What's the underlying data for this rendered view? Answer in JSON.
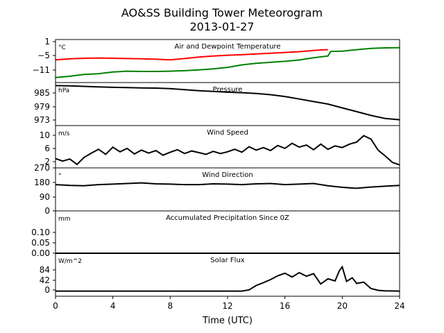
{
  "title_line1": "AO&SS Building Tower Meteorogram",
  "title_line2": "2013-01-27",
  "xlabel": "Time (UTC)",
  "chart_data": {
    "type": "line",
    "x_ticks": [
      "0",
      "4",
      "8",
      "12",
      "16",
      "20",
      "24"
    ],
    "x_range": [
      0,
      24
    ],
    "panels": [
      {
        "title": "Air and Dewpoint Temperature",
        "unit": "°C",
        "y_ticks": [
          "1",
          "−5",
          "−11"
        ],
        "ylim": [
          -15,
          2
        ],
        "series": [
          {
            "color": "#ff0000",
            "x": [
              0,
              1,
              2,
              3,
              4,
              5,
              6,
              7,
              8,
              9,
              10,
              11,
              12,
              13,
              14,
              15,
              16,
              17,
              18,
              18.5,
              19
            ],
            "y": [
              -6.0,
              -5.6,
              -5.4,
              -5.3,
              -5.4,
              -5.5,
              -5.6,
              -5.8,
              -6.0,
              -5.5,
              -4.9,
              -4.5,
              -4.2,
              -4.0,
              -3.7,
              -3.4,
              -3.1,
              -2.8,
              -2.3,
              -2.1,
              -2.0
            ]
          },
          {
            "color": "#008000",
            "x": [
              0,
              1,
              2,
              3,
              4,
              5,
              6,
              7,
              8,
              9,
              10,
              11,
              12,
              13,
              14,
              15,
              16,
              17,
              18,
              19,
              19.2,
              20,
              21,
              22,
              23,
              24
            ],
            "y": [
              -13.0,
              -12.5,
              -11.8,
              -11.5,
              -10.8,
              -10.5,
              -10.6,
              -10.6,
              -10.5,
              -10.3,
              -10.0,
              -9.6,
              -9.0,
              -8.0,
              -7.4,
              -7.0,
              -6.6,
              -6.1,
              -5.2,
              -4.5,
              -2.7,
              -2.6,
              -2.0,
              -1.5,
              -1.3,
              -1.2
            ]
          }
        ]
      },
      {
        "title": "Pressure",
        "unit": "hPa",
        "y_ticks": [
          "985",
          "979",
          "973"
        ],
        "ylim": [
          971,
          988
        ],
        "series": [
          {
            "color": "#000000",
            "x": [
              0,
              1,
              2,
              3,
              4,
              5,
              6,
              7,
              8,
              9,
              10,
              11,
              12,
              13,
              14,
              15,
              16,
              17,
              18,
              19,
              20,
              21,
              22,
              23,
              24
            ],
            "y": [
              986.8,
              986.7,
              986.5,
              986.3,
              986.1,
              986.0,
              985.9,
              985.8,
              985.6,
              985.2,
              984.8,
              984.5,
              984.2,
              984.0,
              983.7,
              983.2,
              982.5,
              981.5,
              980.5,
              979.5,
              978.0,
              976.5,
              975.0,
              973.8,
              973.3
            ]
          }
        ]
      },
      {
        "title": "Wind Speed",
        "unit": "m/s",
        "y_ticks": [
          "10",
          "6",
          "2"
        ],
        "ylim": [
          2,
          12
        ],
        "series": [
          {
            "color": "#000000",
            "x": [
              0,
              0.5,
              1,
              1.5,
              2,
              2.5,
              3,
              3.5,
              4,
              4.5,
              5,
              5.5,
              6,
              6.5,
              7,
              7.5,
              8,
              8.5,
              9,
              9.5,
              10,
              10.5,
              11,
              11.5,
              12,
              12.5,
              13,
              13.5,
              14,
              14.5,
              15,
              15.5,
              16,
              16.5,
              17,
              17.5,
              18,
              18.5,
              19,
              19.5,
              20,
              20.5,
              21,
              21.5,
              22,
              22.5,
              23,
              23.5,
              24
            ],
            "y": [
              4.2,
              3.6,
              4.1,
              2.8,
              4.5,
              5.5,
              6.4,
              5.2,
              6.9,
              5.8,
              6.6,
              5.3,
              6.2,
              5.5,
              6.1,
              5.0,
              5.7,
              6.3,
              5.4,
              6.0,
              5.6,
              5.2,
              5.9,
              5.4,
              5.8,
              6.4,
              5.7,
              7.0,
              6.2,
              6.8,
              6.1,
              7.3,
              6.6,
              7.8,
              6.9,
              7.4,
              6.3,
              7.6,
              6.4,
              7.2,
              6.8,
              7.6,
              8.1,
              9.6,
              8.8,
              6.2,
              4.8,
              3.3,
              2.7
            ]
          }
        ]
      },
      {
        "title": "Wind Direction",
        "unit": "°",
        "y_ticks": [
          "270",
          "180",
          "90",
          "0"
        ],
        "ylim": [
          0,
          270
        ],
        "series": [
          {
            "color": "#000000",
            "x": [
              0,
              1,
              2,
              3,
              4,
              5,
              6,
              7,
              8,
              9,
              10,
              11,
              12,
              13,
              14,
              15,
              16,
              17,
              18,
              19,
              20,
              21,
              22,
              23,
              24
            ],
            "y": [
              165,
              160,
              158,
              165,
              168,
              172,
              176,
              170,
              168,
              165,
              165,
              170,
              168,
              165,
              170,
              172,
              165,
              168,
              172,
              158,
              148,
              142,
              150,
              155,
              160
            ]
          }
        ]
      },
      {
        "title": "Accumulated Precipitation Since 0Z",
        "unit": "mm",
        "y_ticks": [
          "0.10",
          "0.05",
          "0.00"
        ],
        "ylim": [
          0,
          0.15
        ],
        "series": [
          {
            "color": "#000000",
            "x": [
              0,
              24
            ],
            "y": [
              0,
              0
            ]
          }
        ]
      },
      {
        "title": "Solar Flux",
        "unit": "W/m^2",
        "y_ticks": [
          "84",
          "42",
          "0"
        ],
        "ylim": [
          -20,
          148
        ],
        "series": [
          {
            "color": "#000000",
            "x": [
              0,
              13,
              13.5,
              14,
              14.5,
              15,
              15.5,
              16,
              16.5,
              17,
              17.5,
              18,
              18.5,
              19,
              19.5,
              19.8,
              20,
              20.3,
              20.7,
              21,
              21.5,
              22,
              22.5,
              23,
              24
            ],
            "y": [
              0,
              0,
              5,
              22,
              33,
              45,
              60,
              70,
              55,
              72,
              58,
              68,
              28,
              48,
              40,
              80,
              95,
              38,
              52,
              30,
              35,
              10,
              3,
              1,
              0
            ]
          }
        ]
      }
    ]
  }
}
